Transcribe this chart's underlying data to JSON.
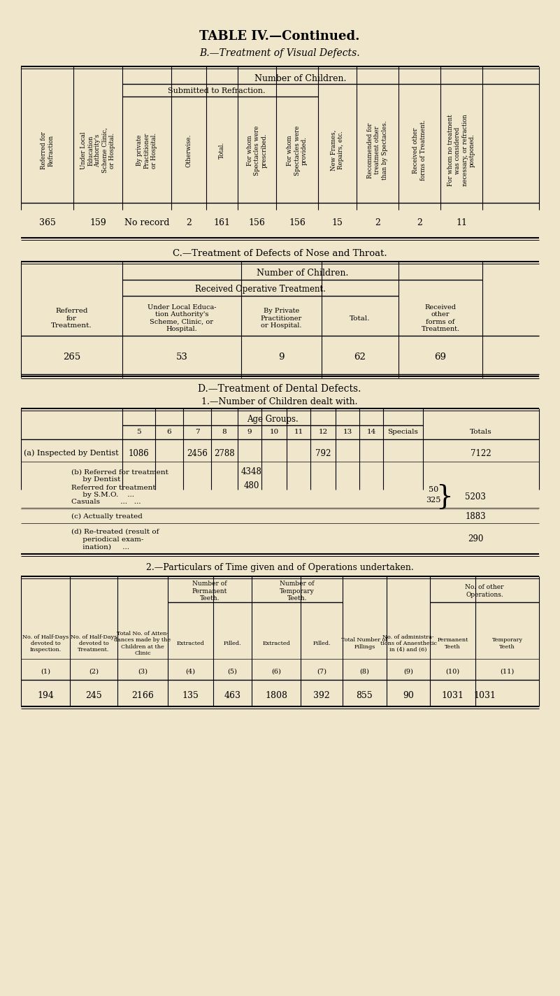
{
  "bg_color": "#f0e6cc",
  "title1": "TABLE IV.—Continued.",
  "title2": "B.—Treatment of Visual Defects.",
  "section_b_header": "Number of Children.",
  "section_b_subheader": "Submitted to Refraction.",
  "section_b_cols": [
    "Referred for\nRefraction",
    "Under Local\nEducation\nAuthority's\nScheme Clinic,\nor Hospital.",
    "By private\nPractitioner\nor Hospital.",
    "Otherwise.",
    "Total.",
    "For whom\nSpectacles were\nprescribed.",
    "For whom\nSpectacles were\nprovided.",
    "New Frames,\nRepairs, etc.",
    "Recommended for\ntreatment other\nthan by Spectacles.",
    "Received other\nforms of Treatment.",
    "For whom no treatment\nwas considered\nnecessary, or refraction\npostponed."
  ],
  "section_b_data": [
    "365",
    "159",
    "No record",
    "2",
    "161",
    "156",
    "156",
    "15",
    "2",
    "2",
    "11"
  ],
  "section_c_title": "C.—Treatment of Defects of Nose and Throat.",
  "section_c_header1": "Number of Children.",
  "section_c_header2": "Received Operative Treatment.",
  "section_c_cols": [
    "Referred\nfor\nTreatment.",
    "Under Local Educa-\ntion Authority's\nScheme, Clinic, or\nHospital.",
    "By Private\nPractitioner\nor Hospital.",
    "Total.",
    "Received\nother\nforms of\nTreatment."
  ],
  "section_c_data": [
    "265",
    "53",
    "9",
    "62",
    "69"
  ],
  "section_d_title": "D.—Treatment of Dental Defects.",
  "section_d_subtitle": "1.—Number of Children dealt with.",
  "age_groups_label": "Age Groups.",
  "age_cols": [
    "5",
    "6",
    "7",
    "8",
    "9",
    "10",
    "11",
    "12",
    "13",
    "14",
    "Specials",
    "Totals"
  ],
  "section_d1_rows": [
    {
      "label": "(a) Inspected by Dentist",
      "values": [
        "1086",
        "",
        "2456",
        "2788",
        "",
        "",
        "",
        "792",
        "",
        "",
        "",
        "7122"
      ]
    },
    {
      "label": "(b) Referred for treatment\n     by Dentist\nReferred for treatment\n     by S.M.O.\nCasuals       ...",
      "values": [
        "",
        "",
        "",
        "",
        "",
        "",
        "",
        "",
        "",
        "",
        "",
        ""
      ]
    },
    {
      "label": "",
      "values": [
        "",
        "",
        "",
        "",
        "",
        "",
        "",
        "",
        "",
        "",
        "",
        ""
      ]
    }
  ],
  "b_dentist_val": "4348",
  "smo_val": "480",
  "casuals_right": "50",
  "casuals_brace": "5203",
  "actually_treated": "1883",
  "retreated": "290",
  "section_d2_title": "2.—Particulars of Time given and of Operations undertaken.",
  "section_d2_cols": [
    "No. of Half-Days\ndevoted to\nInspection.",
    "No. of Half-Days\ndevoted to\nTreatment.",
    "Total No. of Atten-\ndances made by the\nChildren at the\nClinic",
    "Number of\nPermanent\nTeeth.\nExtracted",
    "Number of\nPermanent\nTeeth.\nFilled.",
    "Number of\nTemporary\nTeeth.\nExtracted",
    "Number of\nTemporary\nTeeth.\nFilled.",
    "Total Number of\nFillings",
    "No. of administra-\ntions of Anaesthetic\nin (4) and (6)",
    "No. of other Operations.\nPermanent\nTeeth",
    "No. of other Operations.\nTemporary\nTeeth"
  ],
  "section_d2_col_nums": [
    "(1)",
    "(2)",
    "(3)",
    "(4)",
    "(5)",
    "(6)",
    "(7)",
    "(8)",
    "(9)",
    "(10)",
    "(11)"
  ],
  "section_d2_data": [
    "194",
    "245",
    "2166",
    "135",
    "463",
    "1808",
    "392",
    "855",
    "90",
    "1031",
    ""
  ]
}
